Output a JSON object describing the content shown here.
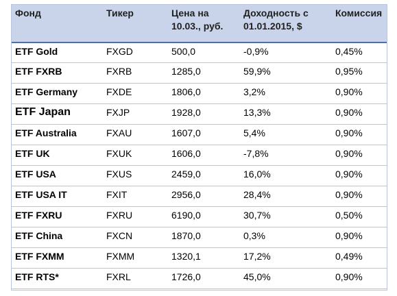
{
  "table": {
    "headers": {
      "fund": "Фонд",
      "ticker": "Тикер",
      "price": "Цена на 10.03., руб.",
      "yield": "Доходность с 01.01.2015, $",
      "fee": "Комиссия"
    },
    "rows": [
      {
        "fund": "ETF Gold",
        "ticker": "FXGD",
        "price": "500,0",
        "yield": "-0,9%",
        "fee": "0,45%"
      },
      {
        "fund": "ETF FXRB",
        "ticker": "FXRB",
        "price": "1285,0",
        "yield": "59,9%",
        "fee": "0,95%"
      },
      {
        "fund": "ETF Germany",
        "ticker": "FXDE",
        "price": "1806,0",
        "yield": "3,2%",
        "fee": "0,90%"
      },
      {
        "fund": "ETF Japan",
        "ticker": "FXJP",
        "price": "1928,0",
        "yield": "13,3%",
        "fee": "0,90%"
      },
      {
        "fund": "ETF Australia",
        "ticker": "FXAU",
        "price": "1607,0",
        "yield": "5,4%",
        "fee": "0,90%"
      },
      {
        "fund": "ETF UK",
        "ticker": "FXUK",
        "price": "1606,0",
        "yield": "-7,8%",
        "fee": "0,90%"
      },
      {
        "fund": "ETF USA",
        "ticker": "FXUS",
        "price": "2459,0",
        "yield": "16,0%",
        "fee": "0,90%"
      },
      {
        "fund": "ETF USA IT",
        "ticker": "FXIT",
        "price": "2956,0",
        "yield": "28,4%",
        "fee": "0,90%"
      },
      {
        "fund": "ETF FXRU",
        "ticker": "FXRU",
        "price": "6190,0",
        "yield": "30,7%",
        "fee": "0,50%"
      },
      {
        "fund": "ETF China",
        "ticker": "FXCN",
        "price": "1870,0",
        "yield": "0,3%",
        "fee": "0,90%"
      },
      {
        "fund": "ETF FXMM",
        "ticker": "FXMM",
        "price": "1320,1",
        "yield": "17,2%",
        "fee": "0,49%"
      },
      {
        "fund": "ETF RTS*",
        "ticker": "FXRL",
        "price": "1726,0",
        "yield": "45,0%",
        "fee": "0,90%"
      }
    ]
  },
  "colors": {
    "header_bg": "#c9d4ea",
    "header_rule": "#4f6fa8",
    "row_rule": "#b7c4dc"
  }
}
